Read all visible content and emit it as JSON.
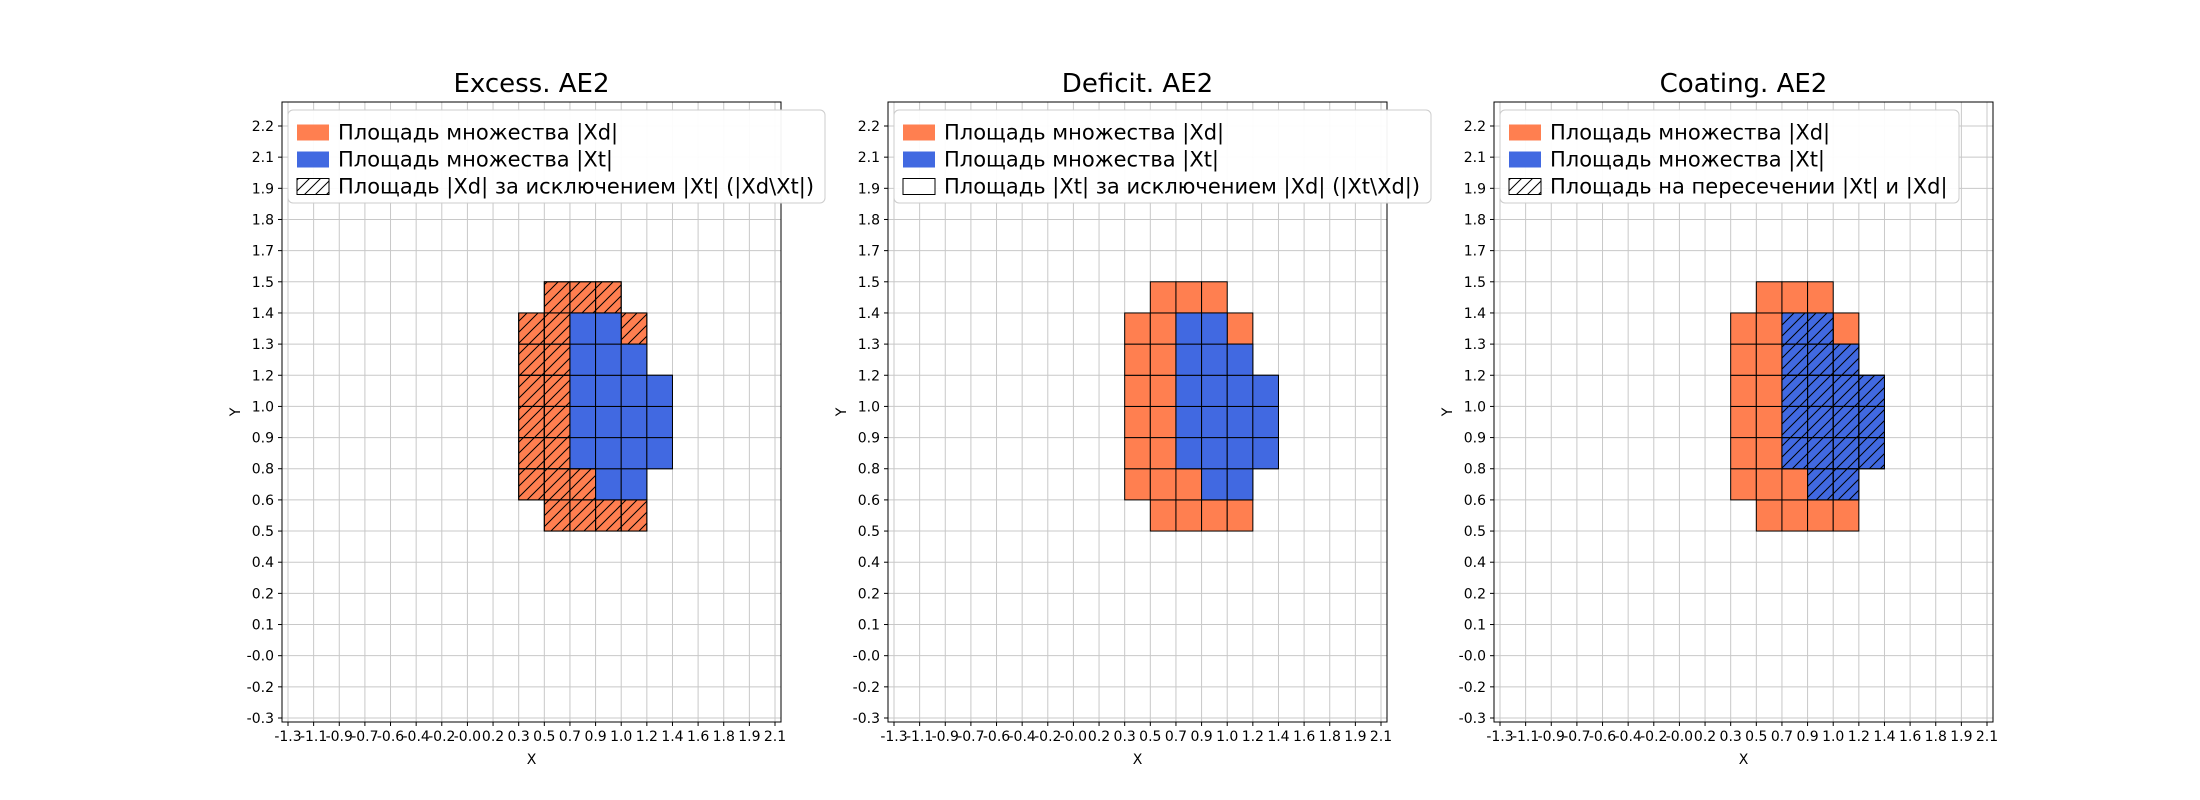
{
  "figure": {
    "background": "#ffffff",
    "colors": {
      "xd_fill": "#ff7f50",
      "xt_fill": "#4169e1",
      "grid_line": "#c8c8c8",
      "cell_edge": "#000000",
      "axes_edge": "#000000",
      "legend_border": "#cccccc",
      "text": "#000000"
    }
  },
  "chart_data": [
    {
      "type": "heatmap",
      "key": "excess",
      "title": "Excess. AE2",
      "xlabel": "X",
      "ylabel": "Y",
      "x_ticks": [
        "-1.3",
        "-1.1",
        "-0.9",
        "-0.7",
        "-0.6",
        "-0.4",
        "-0.2",
        "-0.0",
        "0.2",
        "0.3",
        "0.5",
        "0.7",
        "0.9",
        "1.0",
        "1.2",
        "1.4",
        "1.6",
        "1.8",
        "1.9",
        "2.1"
      ],
      "y_ticks": [
        "-0.3",
        "-0.2",
        "-0.0",
        "0.1",
        "0.2",
        "0.4",
        "0.5",
        "0.6",
        "0.8",
        "0.9",
        "1.0",
        "1.2",
        "1.3",
        "1.4",
        "1.5",
        "1.7",
        "1.8",
        "1.9",
        "2.1",
        "2.2"
      ],
      "legend": [
        {
          "swatch": "xd",
          "label": "Площадь множества |Xd|"
        },
        {
          "swatch": "xt",
          "label": "Площадь множества  |Xt|"
        },
        {
          "swatch": "hatch",
          "label": "Площадь |Xd| за исключением |Xt| (|Xd\\Xt|)"
        }
      ],
      "cells_xd": [
        [
          10,
          6
        ],
        [
          11,
          6
        ],
        [
          12,
          6
        ],
        [
          13,
          6
        ],
        [
          9,
          7
        ],
        [
          10,
          7
        ],
        [
          11,
          7
        ],
        [
          12,
          7
        ],
        [
          13,
          7
        ],
        [
          9,
          8
        ],
        [
          10,
          8
        ],
        [
          11,
          8
        ],
        [
          12,
          8
        ],
        [
          13,
          8
        ],
        [
          14,
          8
        ],
        [
          9,
          9
        ],
        [
          10,
          9
        ],
        [
          11,
          9
        ],
        [
          12,
          9
        ],
        [
          13,
          9
        ],
        [
          14,
          9
        ],
        [
          9,
          10
        ],
        [
          10,
          10
        ],
        [
          11,
          10
        ],
        [
          12,
          10
        ],
        [
          13,
          10
        ],
        [
          14,
          10
        ],
        [
          9,
          11
        ],
        [
          10,
          11
        ],
        [
          11,
          11
        ],
        [
          12,
          11
        ],
        [
          13,
          11
        ],
        [
          9,
          12
        ],
        [
          10,
          12
        ],
        [
          11,
          12
        ],
        [
          12,
          12
        ],
        [
          13,
          12
        ],
        [
          10,
          13
        ],
        [
          11,
          13
        ],
        [
          12,
          13
        ]
      ],
      "cells_xt": [
        [
          12,
          7
        ],
        [
          13,
          7
        ],
        [
          11,
          8
        ],
        [
          12,
          8
        ],
        [
          13,
          8
        ],
        [
          14,
          8
        ],
        [
          11,
          9
        ],
        [
          12,
          9
        ],
        [
          13,
          9
        ],
        [
          14,
          9
        ],
        [
          11,
          10
        ],
        [
          12,
          10
        ],
        [
          13,
          10
        ],
        [
          14,
          10
        ],
        [
          11,
          11
        ],
        [
          12,
          11
        ],
        [
          13,
          11
        ],
        [
          11,
          12
        ],
        [
          12,
          12
        ]
      ],
      "cells_hatched": [
        [
          10,
          6
        ],
        [
          11,
          6
        ],
        [
          12,
          6
        ],
        [
          13,
          6
        ],
        [
          9,
          7
        ],
        [
          10,
          7
        ],
        [
          11,
          7
        ],
        [
          9,
          8
        ],
        [
          10,
          8
        ],
        [
          9,
          9
        ],
        [
          10,
          9
        ],
        [
          9,
          10
        ],
        [
          10,
          10
        ],
        [
          9,
          11
        ],
        [
          10,
          11
        ],
        [
          9,
          12
        ],
        [
          10,
          12
        ],
        [
          13,
          12
        ],
        [
          10,
          13
        ],
        [
          11,
          13
        ],
        [
          12,
          13
        ]
      ]
    },
    {
      "type": "heatmap",
      "key": "deficit",
      "title": "Deficit. AE2",
      "xlabel": "X",
      "ylabel": "Y",
      "x_ticks": [
        "-1.3",
        "-1.1",
        "-0.9",
        "-0.7",
        "-0.6",
        "-0.4",
        "-0.2",
        "-0.0",
        "0.2",
        "0.3",
        "0.5",
        "0.7",
        "0.9",
        "1.0",
        "1.2",
        "1.4",
        "1.6",
        "1.8",
        "1.9",
        "2.1"
      ],
      "y_ticks": [
        "-0.3",
        "-0.2",
        "-0.0",
        "0.1",
        "0.2",
        "0.4",
        "0.5",
        "0.6",
        "0.8",
        "0.9",
        "1.0",
        "1.2",
        "1.3",
        "1.4",
        "1.5",
        "1.7",
        "1.8",
        "1.9",
        "2.1",
        "2.2"
      ],
      "legend": [
        {
          "swatch": "xd",
          "label": "Площадь множества |Xd|"
        },
        {
          "swatch": "xt",
          "label": "Площадь множества  |Xt|"
        },
        {
          "swatch": "empty",
          "label": "Площадь |Xt| за исключением |Xd| (|Xt\\Xd|)"
        }
      ],
      "cells_xd": [
        [
          10,
          6
        ],
        [
          11,
          6
        ],
        [
          12,
          6
        ],
        [
          13,
          6
        ],
        [
          9,
          7
        ],
        [
          10,
          7
        ],
        [
          11,
          7
        ],
        [
          12,
          7
        ],
        [
          13,
          7
        ],
        [
          9,
          8
        ],
        [
          10,
          8
        ],
        [
          11,
          8
        ],
        [
          12,
          8
        ],
        [
          13,
          8
        ],
        [
          14,
          8
        ],
        [
          9,
          9
        ],
        [
          10,
          9
        ],
        [
          11,
          9
        ],
        [
          12,
          9
        ],
        [
          13,
          9
        ],
        [
          14,
          9
        ],
        [
          9,
          10
        ],
        [
          10,
          10
        ],
        [
          11,
          10
        ],
        [
          12,
          10
        ],
        [
          13,
          10
        ],
        [
          14,
          10
        ],
        [
          9,
          11
        ],
        [
          10,
          11
        ],
        [
          11,
          11
        ],
        [
          12,
          11
        ],
        [
          13,
          11
        ],
        [
          9,
          12
        ],
        [
          10,
          12
        ],
        [
          11,
          12
        ],
        [
          12,
          12
        ],
        [
          13,
          12
        ],
        [
          10,
          13
        ],
        [
          11,
          13
        ],
        [
          12,
          13
        ]
      ],
      "cells_xt": [
        [
          12,
          7
        ],
        [
          13,
          7
        ],
        [
          11,
          8
        ],
        [
          12,
          8
        ],
        [
          13,
          8
        ],
        [
          14,
          8
        ],
        [
          11,
          9
        ],
        [
          12,
          9
        ],
        [
          13,
          9
        ],
        [
          14,
          9
        ],
        [
          11,
          10
        ],
        [
          12,
          10
        ],
        [
          13,
          10
        ],
        [
          14,
          10
        ],
        [
          11,
          11
        ],
        [
          12,
          11
        ],
        [
          13,
          11
        ],
        [
          11,
          12
        ],
        [
          12,
          12
        ]
      ],
      "cells_hatched": []
    },
    {
      "type": "heatmap",
      "key": "coating",
      "title": "Coating. AE2",
      "xlabel": "X",
      "ylabel": "Y",
      "x_ticks": [
        "-1.3",
        "-1.1",
        "-0.9",
        "-0.7",
        "-0.6",
        "-0.4",
        "-0.2",
        "-0.0",
        "0.2",
        "0.3",
        "0.5",
        "0.7",
        "0.9",
        "1.0",
        "1.2",
        "1.4",
        "1.6",
        "1.8",
        "1.9",
        "2.1"
      ],
      "y_ticks": [
        "-0.3",
        "-0.2",
        "-0.0",
        "0.1",
        "0.2",
        "0.4",
        "0.5",
        "0.6",
        "0.8",
        "0.9",
        "1.0",
        "1.2",
        "1.3",
        "1.4",
        "1.5",
        "1.7",
        "1.8",
        "1.9",
        "2.1",
        "2.2"
      ],
      "legend": [
        {
          "swatch": "xd",
          "label": "Площадь множества |Xd|"
        },
        {
          "swatch": "xt",
          "label": "Площадь множества  |Xt|"
        },
        {
          "swatch": "hatch",
          "label": "Площадь на пересечении |Xt| и |Xd|"
        }
      ],
      "cells_xd": [
        [
          10,
          6
        ],
        [
          11,
          6
        ],
        [
          12,
          6
        ],
        [
          13,
          6
        ],
        [
          9,
          7
        ],
        [
          10,
          7
        ],
        [
          11,
          7
        ],
        [
          12,
          7
        ],
        [
          13,
          7
        ],
        [
          9,
          8
        ],
        [
          10,
          8
        ],
        [
          11,
          8
        ],
        [
          12,
          8
        ],
        [
          13,
          8
        ],
        [
          14,
          8
        ],
        [
          9,
          9
        ],
        [
          10,
          9
        ],
        [
          11,
          9
        ],
        [
          12,
          9
        ],
        [
          13,
          9
        ],
        [
          14,
          9
        ],
        [
          9,
          10
        ],
        [
          10,
          10
        ],
        [
          11,
          10
        ],
        [
          12,
          10
        ],
        [
          13,
          10
        ],
        [
          14,
          10
        ],
        [
          9,
          11
        ],
        [
          10,
          11
        ],
        [
          11,
          11
        ],
        [
          12,
          11
        ],
        [
          13,
          11
        ],
        [
          9,
          12
        ],
        [
          10,
          12
        ],
        [
          11,
          12
        ],
        [
          12,
          12
        ],
        [
          13,
          12
        ],
        [
          10,
          13
        ],
        [
          11,
          13
        ],
        [
          12,
          13
        ]
      ],
      "cells_xt": [
        [
          12,
          7
        ],
        [
          13,
          7
        ],
        [
          11,
          8
        ],
        [
          12,
          8
        ],
        [
          13,
          8
        ],
        [
          14,
          8
        ],
        [
          11,
          9
        ],
        [
          12,
          9
        ],
        [
          13,
          9
        ],
        [
          14,
          9
        ],
        [
          11,
          10
        ],
        [
          12,
          10
        ],
        [
          13,
          10
        ],
        [
          14,
          10
        ],
        [
          11,
          11
        ],
        [
          12,
          11
        ],
        [
          13,
          11
        ],
        [
          11,
          12
        ],
        [
          12,
          12
        ]
      ],
      "cells_hatched": [
        [
          12,
          7
        ],
        [
          13,
          7
        ],
        [
          11,
          8
        ],
        [
          12,
          8
        ],
        [
          13,
          8
        ],
        [
          14,
          8
        ],
        [
          11,
          9
        ],
        [
          12,
          9
        ],
        [
          13,
          9
        ],
        [
          14,
          9
        ],
        [
          11,
          10
        ],
        [
          12,
          10
        ],
        [
          13,
          10
        ],
        [
          14,
          10
        ],
        [
          11,
          11
        ],
        [
          12,
          11
        ],
        [
          13,
          11
        ],
        [
          11,
          12
        ],
        [
          12,
          12
        ]
      ]
    }
  ]
}
